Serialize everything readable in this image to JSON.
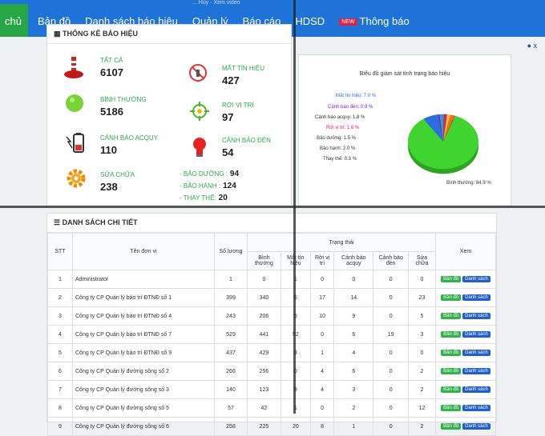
{
  "nav": {
    "home": "chủ",
    "items": [
      "Bản đồ",
      "Danh sách báo hiệu",
      "Quản lý",
      "Báo cáo",
      "HDSD"
    ],
    "notify_badge": "NEW",
    "notify": "Thông báo",
    "crumb": "... Hủy · Xem video"
  },
  "user": "x",
  "stats_panel": {
    "title": "THỐNG KÊ BÁO HIỆU",
    "all_label": "TẤT CẢ",
    "all_value": "6107",
    "lost_label": "MẤT TÍN HIỆU",
    "lost_value": "427",
    "normal_label": "BÌNH THƯỜNG",
    "normal_value": "5186",
    "drift_label": "RỜI VỊ TRÍ",
    "drift_value": "97",
    "battery_label": "CẢNH BÁO ACQUY",
    "battery_value": "110",
    "lamp_label": "CẢNH BÁO ĐÈN",
    "lamp_value": "54",
    "repair_label": "SỬA CHỮA",
    "repair_value": "238",
    "maint_label": "- BẢO DƯỠNG :",
    "maint_value": "94",
    "warranty_label": "- BẢO HÀNH :",
    "warranty_value": "124",
    "replace_label": "- THAY THẾ:",
    "replace_value": "20"
  },
  "chart_data": {
    "type": "pie",
    "title": "Biểu đồ giám sát tình trạng báo hiệu",
    "slices": [
      {
        "name": "Bình thường",
        "value": 84.9,
        "label": "Bình thường: 84.9 %",
        "color": "#3fd42f"
      },
      {
        "name": "Mất tín hiệu",
        "value": 7.0,
        "label": "Mất tín hiệu: 7.0 %",
        "color": "#2a6fe0"
      },
      {
        "name": "Cảnh báo đèn",
        "value": 0.9,
        "label": "Cảnh báo đèn: 0.9 %",
        "color": "#8e1fd0"
      },
      {
        "name": "Cảnh báo acquy",
        "value": 1.8,
        "label": "Cảnh báo acquy: 1.8 %",
        "color": "#1aa7c9"
      },
      {
        "name": "Rời vị trí",
        "value": 1.6,
        "label": "Rời vị trí: 1.6 %",
        "color": "#e0176e"
      },
      {
        "name": "Bảo dưỡng",
        "value": 1.5,
        "label": "Bảo dưỡng: 1.5 %",
        "color": "#f0c020"
      },
      {
        "name": "Bảo hành",
        "value": 2.0,
        "label": "Bảo hành: 2.0 %",
        "color": "#e8731a"
      },
      {
        "name": "Thay thế",
        "value": 0.3,
        "label": "Thay thế: 0.3 %",
        "color": "#c72828"
      }
    ]
  },
  "table": {
    "title": "DANH SÁCH CHI TIẾT",
    "h_stt": "STT",
    "h_unit": "Tên đơn vị",
    "h_qty": "Số lượng",
    "h_status": "Trạng thái",
    "h_view": "Xem",
    "sub_headers": [
      "Bình thường",
      "Mất tín hiệu",
      "Rời vị trí",
      "Cảnh báo acquy",
      "Cảnh báo đèn",
      "Sửa chữa"
    ],
    "btn_map": "Bản đồ",
    "btn_list": "Danh sách",
    "rows": [
      {
        "stt": "1",
        "name": "Administrator",
        "qty": "1",
        "vals": [
          "0",
          "1",
          "0",
          "0",
          "0",
          "0"
        ],
        "list": true
      },
      {
        "stt": "2",
        "name": "Công ty CP Quản lý bảo trì ĐTNĐ số 1",
        "qty": "399",
        "vals": [
          "340",
          "6",
          "17",
          "14",
          "0",
          "23"
        ],
        "list": true
      },
      {
        "stt": "3",
        "name": "Công ty CP Quản lý bảo trì ĐTNĐ số 4",
        "qty": "243",
        "vals": [
          "206",
          "5",
          "10",
          "9",
          "0",
          "5"
        ],
        "list": true
      },
      {
        "stt": "4",
        "name": "Công ty CP Quản lý bảo trì ĐTNĐ số 7",
        "qty": "529",
        "vals": [
          "441",
          "52",
          "0",
          "6",
          "19",
          "3"
        ],
        "list": true
      },
      {
        "stt": "5",
        "name": "Công ty CP Quản lý bảo trì ĐTNĐ số 9",
        "qty": "437",
        "vals": [
          "429",
          "3",
          "1",
          "4",
          "0",
          "0"
        ],
        "list": true
      },
      {
        "stt": "6",
        "name": "Công ty CP Quản lý đường sông số 2",
        "qty": "266",
        "vals": [
          "256",
          "0",
          "4",
          "6",
          "0",
          "2"
        ],
        "list": true
      },
      {
        "stt": "7",
        "name": "Công ty CP Quản lý đường sông số 3",
        "qty": "140",
        "vals": [
          "123",
          "9",
          "4",
          "3",
          "0",
          "2"
        ],
        "list": true
      },
      {
        "stt": "8",
        "name": "Công ty CP Quản lý đường sông số 5",
        "qty": "57",
        "vals": [
          "42",
          "1",
          "0",
          "2",
          "0",
          "12"
        ],
        "list": true
      },
      {
        "stt": "9",
        "name": "Công ty CP Quản lý đường sông số 6",
        "qty": "258",
        "vals": [
          "225",
          "20",
          "8",
          "1",
          "0",
          "2"
        ],
        "list": true
      }
    ]
  }
}
